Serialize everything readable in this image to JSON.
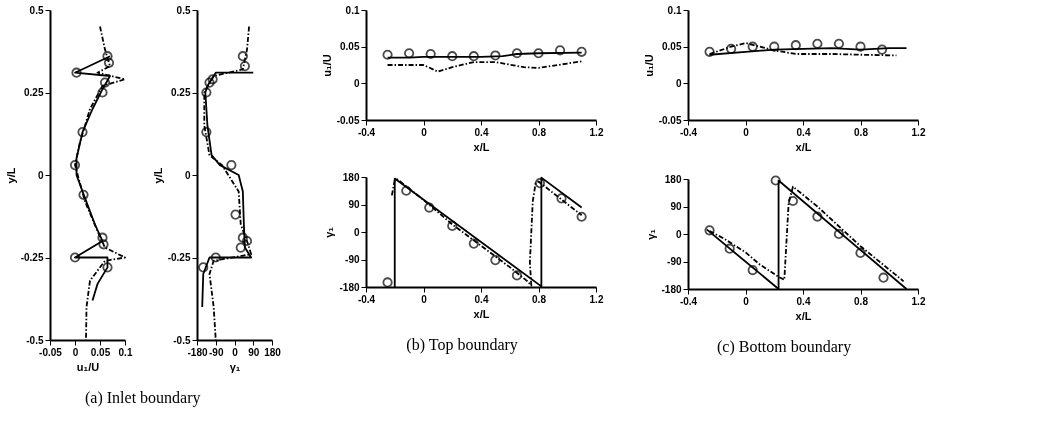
{
  "chart_data": [
    {
      "type": "line",
      "xlabel": "u₁/U",
      "ylabel": "y/L",
      "xlim": [
        -0.05,
        0.1
      ],
      "xticks": [
        -0.05,
        0,
        0.05,
        0.1
      ],
      "ylim": [
        -0.5,
        0.5
      ],
      "yticks": [
        -0.5,
        -0.25,
        0,
        0.25,
        0.5
      ],
      "grid": false,
      "series": [
        {
          "type": "scatter",
          "marker": "circle",
          "color": "#000000",
          "x": [
            0.003,
            0.065,
            0.068,
            0.055,
            0.06,
            0.015,
            0.0,
            0.017,
            0.055,
            0.057,
            0.0,
            0.065
          ],
          "values": [
            0.31,
            0.36,
            0.34,
            0.25,
            0.28,
            0.13,
            0.03,
            -0.06,
            -0.19,
            -0.21,
            -0.25,
            -0.28
          ]
        },
        {
          "type": "line",
          "line_style": "solid",
          "color": "#000000",
          "x": [
            0.07,
            0.0,
            0.07,
            0.055,
            0.035,
            0.015,
            0.003,
            0.003,
            0.02,
            0.04,
            0.055,
            0.0,
            0.065,
            0.065,
            0.045,
            0.035
          ],
          "values": [
            0.36,
            0.31,
            0.3,
            0.26,
            0.2,
            0.13,
            0.05,
            0.0,
            -0.07,
            -0.15,
            -0.2,
            -0.25,
            -0.25,
            -0.28,
            -0.33,
            -0.38
          ]
        },
        {
          "type": "line",
          "line_style": "dashed",
          "color": "#000000",
          "x": [
            0.05,
            0.06,
            0.07,
            0.045,
            0.1,
            0.055,
            0.03,
            0.01,
            0.0,
            0.02,
            0.045,
            0.06,
            0.1,
            0.06,
            0.03,
            0.023,
            0.022
          ],
          "values": [
            0.45,
            0.38,
            0.33,
            0.31,
            0.29,
            0.27,
            0.2,
            0.1,
            0.03,
            -0.08,
            -0.17,
            -0.22,
            -0.25,
            -0.26,
            -0.32,
            -0.4,
            -0.5
          ]
        }
      ]
    },
    {
      "type": "line",
      "xlabel": "γ₁",
      "ylabel": "y/L",
      "xlim": [
        -180,
        180
      ],
      "xticks": [
        -180,
        -90,
        0,
        90,
        180
      ],
      "ylim": [
        -0.5,
        0.5
      ],
      "yticks": [
        -0.5,
        -0.25,
        0,
        0.25,
        0.5
      ],
      "grid": false,
      "annotations": [
        "(a) Inlet boundary"
      ],
      "series": [
        {
          "type": "scatter",
          "marker": "circle",
          "color": "#000000",
          "x": [
            40,
            50,
            -135,
            -120,
            -105,
            -135,
            -15,
            5,
            60,
            40,
            30,
            -90,
            -150
          ],
          "values": [
            0.36,
            0.33,
            0.25,
            0.28,
            0.29,
            0.13,
            0.03,
            -0.12,
            -0.2,
            -0.19,
            -0.22,
            -0.25,
            -0.28
          ]
        },
        {
          "type": "line",
          "line_style": "solid",
          "color": "#000000",
          "x": [
            90,
            -90,
            -130,
            -140,
            -130,
            -110,
            -70,
            20,
            40,
            45,
            50,
            80,
            -120,
            -150,
            -155
          ],
          "values": [
            0.31,
            0.31,
            0.27,
            0.25,
            0.15,
            0.06,
            0.03,
            0.0,
            -0.05,
            -0.15,
            -0.22,
            -0.25,
            -0.25,
            -0.3,
            -0.4
          ]
        },
        {
          "type": "line",
          "line_style": "dashed",
          "color": "#000000",
          "x": [
            70,
            60,
            40,
            -100,
            -145,
            -145,
            -120,
            -60,
            20,
            30,
            60,
            80,
            -100,
            -120,
            -100,
            -90
          ],
          "values": [
            0.45,
            0.38,
            0.32,
            0.3,
            0.25,
            0.15,
            0.06,
            0.03,
            -0.05,
            -0.15,
            -0.2,
            -0.24,
            -0.26,
            -0.3,
            -0.4,
            -0.5
          ]
        }
      ]
    },
    {
      "type": "line",
      "xlabel": "x/L",
      "ylabel": "u₁/U",
      "xlim": [
        -0.4,
        1.2
      ],
      "xticks": [
        -0.4,
        0,
        0.4,
        0.8,
        1.2
      ],
      "ylim": [
        -0.05,
        0.1
      ],
      "yticks": [
        -0.05,
        0,
        0.05,
        0.1
      ],
      "grid": false,
      "series": [
        {
          "type": "scatter",
          "marker": "circle",
          "color": "#000000",
          "x": [
            -0.25,
            -0.1,
            0.05,
            0.2,
            0.35,
            0.5,
            0.65,
            0.8,
            0.95,
            1.1
          ],
          "values": [
            0.039,
            0.041,
            0.04,
            0.037,
            0.037,
            0.038,
            0.041,
            0.041,
            0.045,
            0.043
          ]
        },
        {
          "type": "line",
          "line_style": "solid",
          "color": "#000000",
          "x": [
            -0.25,
            -0.1,
            0.0,
            0.4,
            0.55,
            0.65,
            0.8,
            1.1
          ],
          "values": [
            0.035,
            0.035,
            0.036,
            0.036,
            0.037,
            0.04,
            0.041,
            0.042
          ]
        },
        {
          "type": "line",
          "line_style": "dashed",
          "color": "#000000",
          "x": [
            -0.25,
            0.0,
            0.1,
            0.2,
            0.35,
            0.5,
            0.7,
            0.8,
            1.0,
            1.1
          ],
          "values": [
            0.025,
            0.025,
            0.016,
            0.022,
            0.029,
            0.029,
            0.022,
            0.021,
            0.027,
            0.03
          ]
        }
      ]
    },
    {
      "type": "line",
      "xlabel": "x/L",
      "ylabel": "γ₁",
      "xlim": [
        -0.4,
        1.2
      ],
      "xticks": [
        -0.4,
        0,
        0.4,
        0.8,
        1.2
      ],
      "ylim": [
        -180,
        180
      ],
      "yticks": [
        -180,
        -90,
        0,
        90,
        180
      ],
      "grid": false,
      "annotations": [
        "(b) Top boundary"
      ],
      "series": [
        {
          "type": "scatter",
          "marker": "circle",
          "color": "#000000",
          "x": [
            -0.25,
            -0.12,
            0.04,
            0.2,
            0.35,
            0.5,
            0.65,
            0.81,
            0.96,
            1.1
          ],
          "values": [
            -165,
            135,
            80,
            20,
            -38,
            -92,
            -142,
            160,
            110,
            50
          ]
        },
        {
          "type": "line",
          "line_style": "solid",
          "color": "#000000",
          "x": [
            -0.2,
            -0.2,
            0.82,
            0.82,
            1.1
          ],
          "values": [
            -180,
            175,
            -178,
            178,
            80
          ]
        },
        {
          "type": "line",
          "line_style": "dashed",
          "color": "#000000",
          "x": [
            -0.22,
            -0.2,
            -0.18,
            0.0,
            0.2,
            0.4,
            0.6,
            0.72,
            0.75,
            0.74,
            0.76,
            0.78,
            0.8,
            0.95,
            1.1
          ],
          "values": [
            120,
            170,
            172,
            105,
            25,
            -45,
            -115,
            -160,
            -175,
            -100,
            100,
            160,
            165,
            110,
            55
          ]
        }
      ]
    },
    {
      "type": "line",
      "xlabel": "x/L",
      "ylabel": "u₁/U",
      "xlim": [
        -0.4,
        1.2
      ],
      "xticks": [
        -0.4,
        0,
        0.4,
        0.8,
        1.2
      ],
      "ylim": [
        -0.05,
        0.1
      ],
      "yticks": [
        -0.05,
        0,
        0.05,
        0.1
      ],
      "grid": false,
      "series": [
        {
          "type": "scatter",
          "marker": "circle",
          "color": "#000000",
          "x": [
            -0.25,
            -0.1,
            0.05,
            0.2,
            0.35,
            0.5,
            0.65,
            0.8,
            0.95
          ],
          "values": [
            0.043,
            0.047,
            0.05,
            0.05,
            0.052,
            0.054,
            0.054,
            0.05,
            0.046
          ]
        },
        {
          "type": "line",
          "line_style": "solid",
          "color": "#000000",
          "x": [
            -0.25,
            0.0,
            0.2,
            0.4,
            0.6,
            0.8,
            1.0,
            1.12
          ],
          "values": [
            0.039,
            0.043,
            0.046,
            0.047,
            0.048,
            0.046,
            0.048,
            0.048
          ]
        },
        {
          "type": "line",
          "line_style": "dashed",
          "color": "#000000",
          "x": [
            -0.25,
            -0.1,
            0.0,
            0.1,
            0.2,
            0.35,
            0.6,
            0.8,
            1.05
          ],
          "values": [
            0.04,
            0.05,
            0.055,
            0.05,
            0.045,
            0.04,
            0.04,
            0.039,
            0.038
          ]
        }
      ]
    },
    {
      "type": "line",
      "xlabel": "x/L",
      "ylabel": "γ₁",
      "xlim": [
        -0.4,
        1.2
      ],
      "xticks": [
        -0.4,
        0,
        0.4,
        0.8,
        1.2
      ],
      "ylim": [
        -180,
        180
      ],
      "yticks": [
        -180,
        -90,
        0,
        90,
        180
      ],
      "grid": false,
      "annotations": [
        "(c) Bottom boundary"
      ],
      "series": [
        {
          "type": "scatter",
          "marker": "circle",
          "color": "#000000",
          "x": [
            -0.25,
            -0.11,
            0.05,
            0.21,
            0.33,
            0.5,
            0.65,
            0.8,
            0.96
          ],
          "values": [
            12,
            -48,
            -118,
            175,
            108,
            57,
            0,
            -62,
            -143
          ]
        },
        {
          "type": "line",
          "line_style": "solid",
          "color": "#000000",
          "x": [
            -0.27,
            0.23,
            0.23,
            1.12
          ],
          "values": [
            15,
            -180,
            175,
            -180
          ]
        },
        {
          "type": "line",
          "line_style": "dashed",
          "color": "#000000",
          "x": [
            -0.25,
            -0.15,
            0.0,
            0.1,
            0.23,
            0.27,
            0.3,
            0.33,
            0.5,
            0.8,
            1.1
          ],
          "values": [
            10,
            -15,
            -60,
            -100,
            -140,
            -150,
            100,
            155,
            90,
            -40,
            -155
          ]
        }
      ]
    }
  ]
}
